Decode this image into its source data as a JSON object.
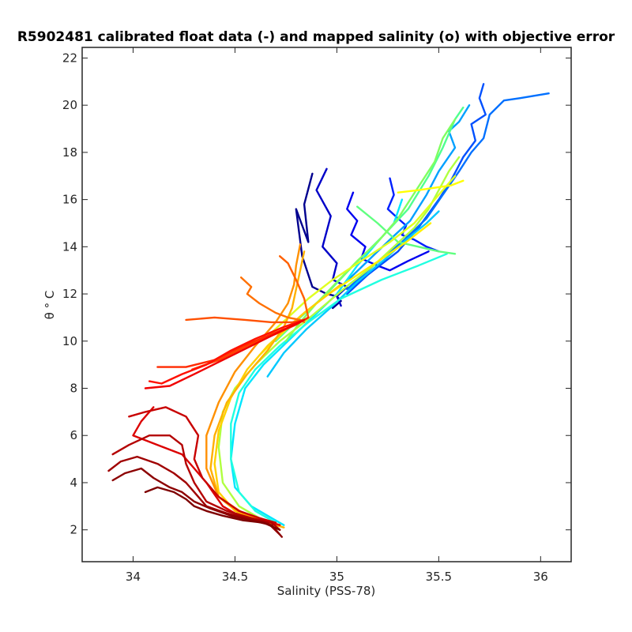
{
  "chart_data": {
    "type": "line",
    "title": "R5902481 calibrated float data (-) and mapped salinity (o) with objective error",
    "xlabel": "Salinity (PSS-78)",
    "ylabel": "θ ° C",
    "xlim": [
      33.75,
      36.15
    ],
    "ylim": [
      0.65,
      22.45
    ],
    "x_ticks": [
      "34",
      "34.5",
      "35",
      "35.5",
      "36"
    ],
    "y_ticks": [
      "2",
      "4",
      "6",
      "8",
      "10",
      "12",
      "14",
      "16",
      "18",
      "20",
      "22"
    ],
    "grid": false,
    "legend": "none",
    "colormap": "jet",
    "series": [
      {
        "color": "#00008f",
        "x": [
          34.88,
          34.84,
          34.86,
          34.8,
          34.83,
          34.88,
          34.95,
          35.0,
          35.02,
          34.98
        ],
        "y": [
          17.1,
          15.8,
          14.2,
          15.6,
          13.6,
          12.3,
          12.0,
          11.9,
          11.7,
          11.4
        ]
      },
      {
        "color": "#0000c8",
        "x": [
          34.95,
          34.9,
          34.97,
          34.93,
          35.0,
          34.98,
          35.05,
          35.0,
          35.02
        ],
        "y": [
          17.3,
          16.4,
          15.3,
          14.0,
          13.3,
          12.6,
          12.3,
          11.9,
          11.5
        ]
      },
      {
        "color": "#0000f0",
        "x": [
          35.08,
          35.05,
          35.1,
          35.07,
          35.14,
          35.12,
          35.2,
          35.26,
          35.35,
          35.45
        ],
        "y": [
          16.3,
          15.6,
          15.1,
          14.5,
          14.0,
          13.5,
          13.2,
          13.0,
          13.4,
          13.8
        ]
      },
      {
        "color": "#0020ff",
        "x": [
          35.26,
          35.28,
          35.25,
          35.3,
          35.34,
          35.32,
          35.38,
          35.44,
          35.5
        ],
        "y": [
          16.9,
          16.2,
          15.6,
          15.2,
          14.9,
          14.5,
          14.3,
          14.0,
          13.8
        ]
      },
      {
        "color": "#0050ff",
        "x": [
          35.72,
          35.7,
          35.73,
          35.66,
          35.68,
          35.62,
          35.56,
          35.5,
          35.4,
          35.3,
          35.15,
          35.05
        ],
        "y": [
          20.9,
          20.3,
          19.6,
          19.2,
          18.5,
          17.8,
          16.8,
          16.0,
          14.8,
          13.8,
          12.8,
          12.0
        ]
      },
      {
        "color": "#0070ff",
        "x": [
          36.04,
          35.9,
          35.82,
          35.75,
          35.72,
          35.66,
          35.6,
          35.52,
          35.44,
          35.32,
          35.18,
          35.05
        ],
        "y": [
          20.5,
          20.3,
          20.2,
          19.6,
          18.6,
          18.0,
          17.2,
          16.2,
          15.2,
          14.2,
          13.2,
          12.2
        ]
      },
      {
        "color": "#00a0ff",
        "x": [
          35.65,
          35.6,
          35.55,
          35.58,
          35.5,
          35.44,
          35.36,
          35.26,
          35.14,
          35.02
        ],
        "y": [
          20.0,
          19.3,
          18.9,
          18.2,
          17.2,
          16.2,
          15.1,
          14.3,
          13.3,
          12.3
        ]
      },
      {
        "color": "#00c8ff",
        "x": [
          35.5,
          35.44,
          35.34,
          35.24,
          35.1,
          34.98,
          34.85,
          34.74,
          34.66
        ],
        "y": [
          15.5,
          15.0,
          14.3,
          13.5,
          12.5,
          11.5,
          10.5,
          9.5,
          8.5
        ]
      },
      {
        "color": "#00e6ff",
        "x": [
          35.32,
          35.28,
          35.2,
          35.1,
          35.0,
          34.88,
          34.76,
          34.64,
          34.55,
          34.5,
          34.48,
          34.5,
          34.58,
          34.68,
          34.74
        ],
        "y": [
          16.0,
          15.0,
          14.2,
          13.2,
          12.0,
          11.0,
          10.0,
          9.0,
          8.0,
          6.5,
          5.0,
          3.8,
          3.0,
          2.5,
          2.2
        ]
      },
      {
        "color": "#20ffe0",
        "x": [
          35.54,
          35.4,
          35.22,
          35.02,
          34.86,
          34.72,
          34.6,
          34.52,
          34.48,
          34.48,
          34.52,
          34.6,
          34.7
        ],
        "y": [
          13.7,
          13.2,
          12.6,
          11.8,
          10.8,
          9.8,
          8.8,
          7.8,
          6.5,
          5.0,
          3.6,
          2.8,
          2.3
        ]
      },
      {
        "color": "#50ff90",
        "x": [
          35.62,
          35.58,
          35.52,
          35.45,
          35.35,
          35.22,
          35.08,
          34.95,
          34.82,
          34.7
        ],
        "y": [
          19.9,
          19.4,
          18.2,
          17.0,
          15.6,
          14.4,
          13.2,
          12.0,
          11.0,
          10.0
        ]
      },
      {
        "color": "#60ff80",
        "x": [
          35.1,
          35.2,
          35.3,
          35.4,
          35.5,
          35.58
        ],
        "y": [
          15.7,
          15.0,
          14.2,
          14.0,
          13.8,
          13.7
        ]
      },
      {
        "color": "#80ff60",
        "x": [
          35.58,
          35.52,
          35.48,
          35.42,
          35.36,
          35.3,
          35.2,
          35.1,
          35.0,
          34.9,
          34.82,
          34.75
        ],
        "y": [
          19.4,
          18.6,
          17.6,
          16.8,
          16.0,
          15.2,
          14.2,
          13.4,
          12.5,
          11.6,
          10.8,
          10.0
        ]
      },
      {
        "color": "#b0ff40",
        "x": [
          35.6,
          35.55,
          35.5,
          35.45,
          35.38,
          35.28,
          35.18,
          35.06,
          34.95,
          34.84,
          34.72,
          34.6,
          34.5,
          34.44,
          34.42,
          34.44,
          34.52,
          34.62,
          34.72
        ],
        "y": [
          17.8,
          17.2,
          16.4,
          15.6,
          14.8,
          14.0,
          13.2,
          12.4,
          11.6,
          10.8,
          10.0,
          9.0,
          8.0,
          7.0,
          5.5,
          4.0,
          3.0,
          2.5,
          2.2
        ]
      },
      {
        "color": "#e0ff20",
        "x": [
          35.58,
          35.52,
          35.46,
          35.38,
          35.26,
          35.12,
          34.98,
          34.86,
          34.76,
          34.66
        ],
        "y": [
          17.0,
          16.4,
          15.8,
          15.0,
          14.2,
          13.4,
          12.6,
          11.8,
          11.0,
          10.2
        ]
      },
      {
        "color": "#ffff00",
        "x": [
          35.3,
          35.4,
          35.48,
          35.56,
          35.62
        ],
        "y": [
          16.3,
          16.4,
          16.5,
          16.6,
          16.8
        ]
      },
      {
        "color": "#fff000",
        "x": [
          35.46,
          35.4,
          35.34,
          35.24,
          35.1,
          34.96,
          34.84,
          34.74,
          34.62
        ],
        "y": [
          15.0,
          14.6,
          14.2,
          13.6,
          12.8,
          12.0,
          11.2,
          10.4,
          9.4
        ]
      },
      {
        "color": "#ffd000",
        "x": [
          35.02,
          34.96,
          34.9,
          34.84,
          34.76,
          34.66,
          34.56,
          34.48,
          34.42,
          34.4,
          34.42,
          34.5,
          34.62,
          34.72
        ],
        "y": [
          12.4,
          12.0,
          11.6,
          11.2,
          10.6,
          9.8,
          8.8,
          7.6,
          6.2,
          4.8,
          3.6,
          2.8,
          2.4,
          2.2
        ]
      },
      {
        "color": "#ffb000",
        "x": [
          34.84,
          34.82,
          34.8,
          34.78,
          34.74,
          34.66,
          34.56,
          34.46,
          34.4,
          34.38,
          34.42,
          34.52,
          34.66,
          34.74
        ],
        "y": [
          13.8,
          13.0,
          12.2,
          11.4,
          10.6,
          9.6,
          8.6,
          7.4,
          6.0,
          4.6,
          3.4,
          2.7,
          2.3,
          2.1
        ]
      },
      {
        "color": "#ff9000",
        "x": [
          34.82,
          34.8,
          34.79,
          34.76,
          34.7,
          34.6,
          34.5,
          34.42,
          34.36,
          34.36,
          34.42,
          34.54,
          34.68
        ],
        "y": [
          14.1,
          13.2,
          12.4,
          11.6,
          10.8,
          9.8,
          8.7,
          7.4,
          6.0,
          4.6,
          3.4,
          2.7,
          2.3
        ]
      },
      {
        "color": "#ff7000",
        "x": [
          34.53,
          34.58,
          34.56,
          34.62,
          34.7,
          34.76,
          34.82,
          34.84
        ],
        "y": [
          12.7,
          12.3,
          12.0,
          11.6,
          11.2,
          11.0,
          10.9,
          10.8
        ]
      },
      {
        "color": "#ff6000",
        "x": [
          34.72,
          34.76,
          34.8,
          34.84,
          34.86
        ],
        "y": [
          13.6,
          13.3,
          12.6,
          11.8,
          11.0
        ]
      },
      {
        "color": "#ff5000",
        "x": [
          34.26,
          34.4,
          34.55,
          34.68,
          34.78,
          34.84
        ],
        "y": [
          10.9,
          11.0,
          10.9,
          10.8,
          10.8,
          10.9
        ]
      },
      {
        "color": "#ff4000",
        "x": [
          34.29,
          34.42,
          34.56,
          34.7,
          34.8,
          34.86
        ],
        "y": [
          8.8,
          9.2,
          9.8,
          10.3,
          10.7,
          11.0
        ]
      },
      {
        "color": "#ff2a00",
        "x": [
          34.12,
          34.26,
          34.4,
          34.54,
          34.68,
          34.8,
          34.86
        ],
        "y": [
          8.9,
          8.9,
          9.2,
          9.8,
          10.3,
          10.7,
          11.0
        ]
      },
      {
        "color": "#ff1000",
        "x": [
          34.08,
          34.14,
          34.24,
          34.36,
          34.48,
          34.6,
          34.74,
          34.84
        ],
        "y": [
          8.3,
          8.2,
          8.6,
          9.0,
          9.6,
          10.1,
          10.6,
          10.9
        ]
      },
      {
        "color": "#f00000",
        "x": [
          34.06,
          34.18,
          34.3,
          34.44,
          34.58,
          34.72,
          34.84
        ],
        "y": [
          8.0,
          8.1,
          8.6,
          9.2,
          9.8,
          10.4,
          10.9
        ]
      },
      {
        "color": "#dc0000",
        "x": [
          34.1,
          34.04,
          34.0,
          34.12,
          34.24,
          34.3,
          34.36,
          34.4,
          34.44,
          34.5,
          34.6,
          34.68,
          34.72
        ],
        "y": [
          7.2,
          6.6,
          6.0,
          5.6,
          5.2,
          4.6,
          4.0,
          3.5,
          3.0,
          2.7,
          2.4,
          2.3,
          2.2
        ]
      },
      {
        "color": "#c80000",
        "x": [
          33.98,
          34.06,
          34.16,
          34.26,
          34.32,
          34.3,
          34.34,
          34.42,
          34.52,
          34.62,
          34.7
        ],
        "y": [
          6.8,
          7.0,
          7.2,
          6.8,
          6.0,
          5.0,
          4.2,
          3.4,
          2.8,
          2.5,
          2.3
        ]
      },
      {
        "color": "#b40000",
        "x": [
          33.9,
          33.98,
          34.08,
          34.18,
          34.24,
          34.26,
          34.3,
          34.36,
          34.46,
          34.58,
          34.68,
          34.72
        ],
        "y": [
          5.2,
          5.6,
          6.0,
          6.0,
          5.6,
          4.8,
          4.0,
          3.2,
          2.8,
          2.5,
          2.3,
          2.0
        ]
      },
      {
        "color": "#a00000",
        "x": [
          33.88,
          33.94,
          34.02,
          34.12,
          34.2,
          34.26,
          34.3,
          34.36,
          34.46,
          34.56,
          34.66,
          34.72
        ],
        "y": [
          4.5,
          4.9,
          5.1,
          4.8,
          4.4,
          4.0,
          3.6,
          3.0,
          2.7,
          2.5,
          2.3,
          1.8
        ]
      },
      {
        "color": "#8c0000",
        "x": [
          33.9,
          33.96,
          34.04,
          34.1,
          34.18,
          34.24,
          34.3,
          34.38,
          34.48,
          34.58,
          34.68,
          34.73
        ],
        "y": [
          4.1,
          4.4,
          4.6,
          4.2,
          3.8,
          3.6,
          3.2,
          2.9,
          2.6,
          2.4,
          2.2,
          1.7
        ]
      },
      {
        "color": "#7f0000",
        "x": [
          34.06,
          34.12,
          34.2,
          34.26,
          34.3,
          34.36,
          34.44,
          34.54,
          34.64,
          34.72
        ],
        "y": [
          3.6,
          3.8,
          3.6,
          3.3,
          3.0,
          2.8,
          2.6,
          2.4,
          2.3,
          2.0
        ]
      }
    ]
  }
}
